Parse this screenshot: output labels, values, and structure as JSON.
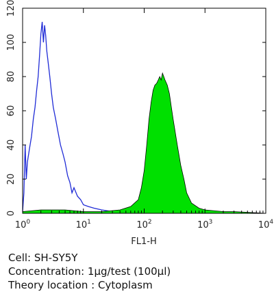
{
  "chart_data": {
    "type": "area",
    "xlabel": "FL1-H",
    "ylabel": "",
    "x_scale": "log",
    "xlim": [
      1,
      10000
    ],
    "ylim": [
      0,
      120
    ],
    "x_ticks": [
      {
        "base": "10",
        "exp": "0",
        "value": 1
      },
      {
        "base": "10",
        "exp": "1",
        "value": 10
      },
      {
        "base": "10",
        "exp": "2",
        "value": 100
      },
      {
        "base": "10",
        "exp": "3",
        "value": 1000
      },
      {
        "base": "10",
        "exp": "4",
        "value": 10000
      }
    ],
    "y_ticks": [
      0,
      20,
      40,
      60,
      80,
      100,
      120
    ],
    "grid": false,
    "series": [
      {
        "style": "outline",
        "color": "#1f2bd6",
        "points": [
          [
            1.0,
            1
          ],
          [
            1.05,
            12
          ],
          [
            1.1,
            40
          ],
          [
            1.15,
            20
          ],
          [
            1.2,
            30
          ],
          [
            1.3,
            38
          ],
          [
            1.4,
            45
          ],
          [
            1.5,
            55
          ],
          [
            1.6,
            62
          ],
          [
            1.7,
            72
          ],
          [
            1.8,
            80
          ],
          [
            1.9,
            92
          ],
          [
            2.0,
            105
          ],
          [
            2.1,
            112
          ],
          [
            2.2,
            100
          ],
          [
            2.3,
            110
          ],
          [
            2.4,
            104
          ],
          [
            2.5,
            95
          ],
          [
            2.6,
            90
          ],
          [
            2.8,
            80
          ],
          [
            3.0,
            70
          ],
          [
            3.2,
            62
          ],
          [
            3.5,
            55
          ],
          [
            3.8,
            48
          ],
          [
            4.2,
            40
          ],
          [
            4.6,
            35
          ],
          [
            5.0,
            30
          ],
          [
            5.5,
            22
          ],
          [
            6.0,
            18
          ],
          [
            6.5,
            12
          ],
          [
            7.0,
            15
          ],
          [
            8.0,
            10
          ],
          [
            9.0,
            8
          ],
          [
            10,
            5
          ],
          [
            12,
            4
          ],
          [
            15,
            3
          ],
          [
            20,
            2
          ],
          [
            30,
            1
          ],
          [
            50,
            1
          ],
          [
            100,
            1
          ]
        ]
      },
      {
        "style": "filled",
        "color": "#00e000",
        "points": [
          [
            1.0,
            1
          ],
          [
            2.0,
            2
          ],
          [
            5.0,
            2
          ],
          [
            10,
            1
          ],
          [
            20,
            1
          ],
          [
            40,
            2
          ],
          [
            60,
            4
          ],
          [
            80,
            8
          ],
          [
            90,
            15
          ],
          [
            100,
            25
          ],
          [
            110,
            40
          ],
          [
            120,
            55
          ],
          [
            130,
            65
          ],
          [
            140,
            72
          ],
          [
            150,
            75
          ],
          [
            160,
            76
          ],
          [
            170,
            78
          ],
          [
            180,
            80
          ],
          [
            190,
            78
          ],
          [
            200,
            82
          ],
          [
            210,
            80
          ],
          [
            220,
            78
          ],
          [
            240,
            75
          ],
          [
            260,
            70
          ],
          [
            280,
            62
          ],
          [
            300,
            55
          ],
          [
            350,
            40
          ],
          [
            400,
            28
          ],
          [
            450,
            20
          ],
          [
            500,
            12
          ],
          [
            600,
            6
          ],
          [
            800,
            3
          ],
          [
            1000,
            2
          ],
          [
            2000,
            1
          ],
          [
            3000,
            1
          ],
          [
            10000,
            0
          ]
        ]
      }
    ]
  },
  "caption": {
    "cell": "Cell: SH-SY5Y",
    "concentration": "Concentration: 1μg/test (100μl)",
    "location": "Theory location : Cytoplasm"
  }
}
